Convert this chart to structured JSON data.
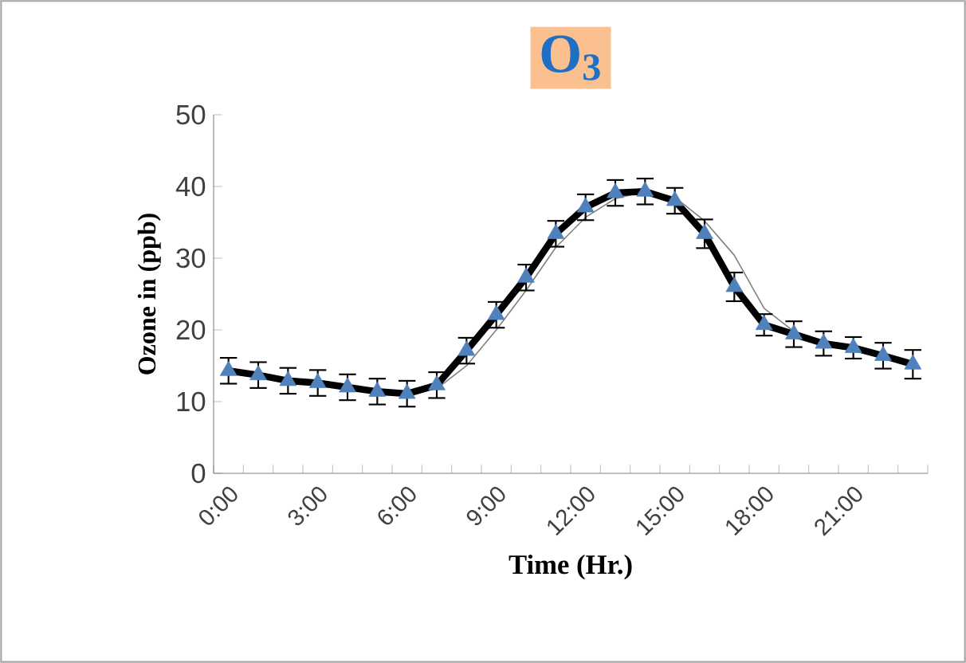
{
  "chart_data": {
    "type": "line",
    "title": "O$_{3}$",
    "xlabel": "Time (Hr.)",
    "ylabel": "Ozone in (ppb)",
    "categories": [
      "0:00",
      null,
      null,
      "3:00",
      null,
      null,
      "6:00",
      null,
      null,
      "9:00",
      null,
      null,
      "12:00",
      null,
      null,
      "15:00",
      null,
      null,
      "18:00",
      null,
      null,
      "21:00",
      null,
      null
    ],
    "ylim": [
      0,
      50
    ],
    "yticks": [
      0,
      10,
      20,
      30,
      40,
      50
    ],
    "grid": false,
    "series": [
      {
        "color": "#808080",
        "values": [
          14.3,
          13.7,
          12.9,
          12.6,
          12.0,
          11.4,
          11.1,
          11.8,
          15.0,
          20.0,
          25.5,
          31.5,
          35.7,
          38.3,
          39.3,
          38.5,
          35.2,
          30.4,
          23.0,
          19.8,
          18.3,
          17.5,
          16.4,
          15.2
        ]
      },
      {
        "color": "#000000",
        "marker": "triangle",
        "values": [
          14.3,
          13.7,
          12.9,
          12.6,
          12.0,
          11.4,
          11.1,
          12.3,
          17.1,
          22.1,
          27.3,
          33.4,
          37.1,
          39.1,
          39.3,
          38.0,
          33.4,
          26.0,
          20.7,
          19.4,
          18.1,
          17.5,
          16.4,
          15.2
        ],
        "errors": [
          1.8,
          1.8,
          1.8,
          1.8,
          1.8,
          1.8,
          1.8,
          1.8,
          1.8,
          1.8,
          1.8,
          1.8,
          1.8,
          1.8,
          1.8,
          1.8,
          2.0,
          2.0,
          1.5,
          1.8,
          1.7,
          1.5,
          1.8,
          2.0
        ]
      }
    ]
  }
}
